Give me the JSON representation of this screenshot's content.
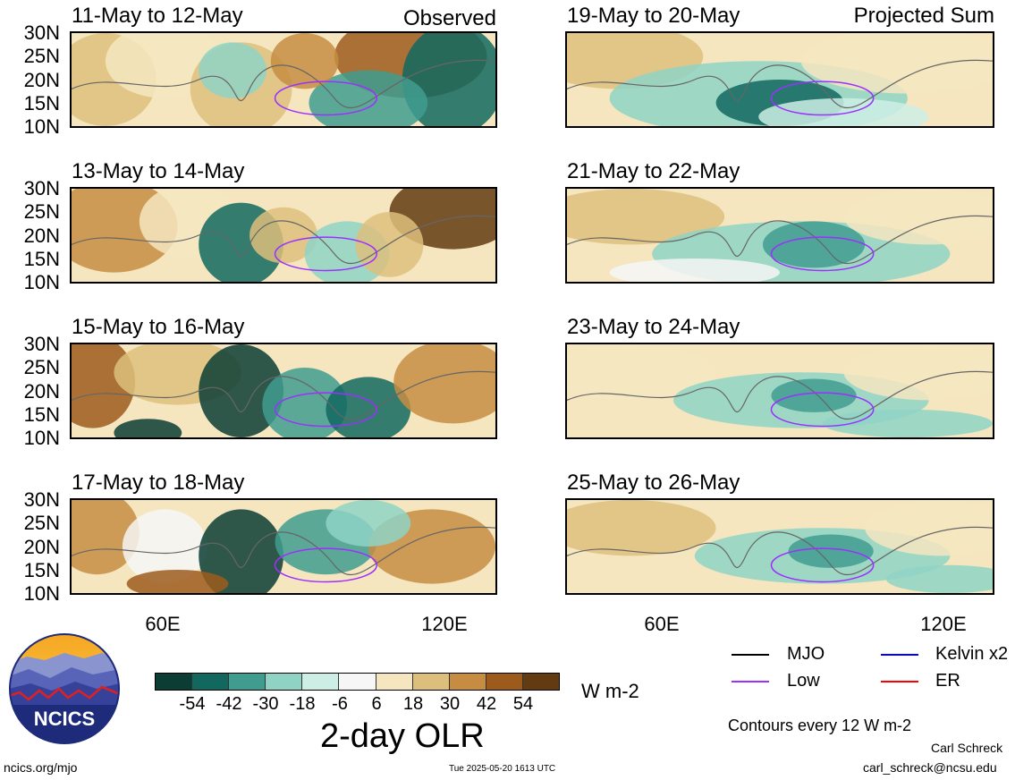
{
  "panels": [
    {
      "title": "11-May to 12-May",
      "label": "Observed"
    },
    {
      "title": "19-May to 20-May",
      "label": "Projected Sum"
    },
    {
      "title": "13-May to 14-May",
      "label": ""
    },
    {
      "title": "21-May to 22-May",
      "label": ""
    },
    {
      "title": "15-May to 16-May",
      "label": ""
    },
    {
      "title": "23-May to 24-May",
      "label": ""
    },
    {
      "title": "17-May to 18-May",
      "label": ""
    },
    {
      "title": "25-May to 26-May",
      "label": ""
    }
  ],
  "lat_labels": [
    "30N",
    "25N",
    "20N",
    "15N",
    "10N"
  ],
  "lon_labels": [
    "60E",
    "120E"
  ],
  "colorbar": {
    "colors": [
      "#0b3d35",
      "#12685f",
      "#3f9c8f",
      "#8fd3c5",
      "#cdeee5",
      "#f6f6f6",
      "#f5e6bf",
      "#ddbf7d",
      "#c68d42",
      "#9c5a1c",
      "#633b10"
    ],
    "ticks": [
      "-54",
      "-42",
      "-30",
      "-18",
      "-6",
      "6",
      "18",
      "30",
      "42",
      "54"
    ],
    "units": "W m-2",
    "title": "2-day OLR"
  },
  "legend": {
    "items": [
      {
        "label": "MJO",
        "color": "#000000"
      },
      {
        "label": "Kelvin x2",
        "color": "#0000ff"
      },
      {
        "label": "Low",
        "color": "#9b30ff"
      },
      {
        "label": "ER",
        "color": "#ff0000"
      }
    ],
    "note": "Contours every 12 W m-2"
  },
  "logo": {
    "text": "NCICS"
  },
  "footer": {
    "url": "ncics.org/mjo",
    "timestamp": "Tue 2025-05-20 1613 UTC",
    "author": "Carl Schreck",
    "email": "carl_schreck@ncsu.edu"
  },
  "chart_data": {
    "type": "heatmap",
    "title": "2-day OLR",
    "units": "W m-2",
    "lat_range": [
      "10N",
      "30N"
    ],
    "lon_ticks": [
      "60E",
      "120E"
    ],
    "contour_interval": "12 W m-2",
    "color_levels": [
      -54,
      -42,
      -30,
      -18,
      -6,
      6,
      18,
      30,
      42,
      54
    ],
    "panels_observed": [
      "11-May to 12-May",
      "13-May to 14-May",
      "15-May to 16-May",
      "17-May to 18-May"
    ],
    "panels_projected": [
      "19-May to 20-May",
      "21-May to 22-May",
      "23-May to 24-May",
      "25-May to 26-May"
    ]
  }
}
